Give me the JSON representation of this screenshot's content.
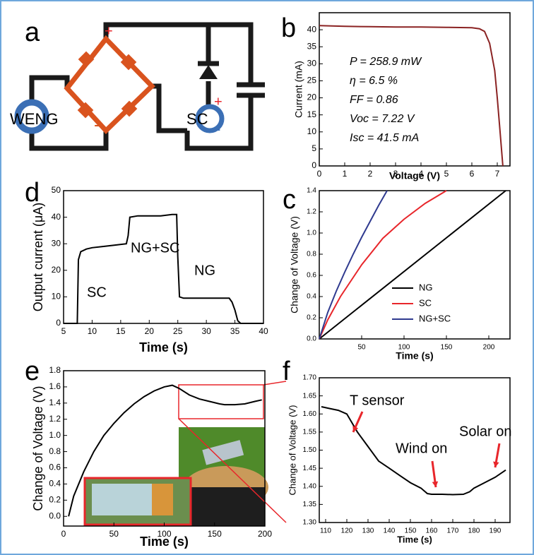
{
  "diagram": {
    "label": "a",
    "texts": [
      "+",
      "WENG",
      "-",
      "+",
      "SC",
      "-"
    ]
  },
  "chart_data": [
    {
      "type": "line",
      "label": "b",
      "x_label": "Voltage (V)",
      "y_label": "Current (mA)",
      "xlim": [
        0,
        7.5
      ],
      "ylim": [
        0,
        45
      ],
      "xticks": [
        0,
        1,
        2,
        3,
        4,
        5,
        6,
        7
      ],
      "yticks": [
        0,
        5,
        10,
        15,
        20,
        25,
        30,
        35,
        40
      ],
      "annotations": [
        "P = 258.9 mW",
        "η = 6.5 %",
        "FF = 0.86",
        "Voc = 7.22 V",
        "Isc = 41.5 mA"
      ],
      "series": [
        {
          "color": "#8b2323",
          "x": [
            0,
            1,
            2,
            3,
            4,
            5,
            6,
            6.3,
            6.5,
            6.7,
            6.9,
            7.0,
            7.1,
            7.22
          ],
          "values": [
            41.2,
            41.0,
            40.9,
            40.8,
            40.8,
            40.7,
            40.6,
            40.3,
            39.5,
            36,
            28,
            20,
            11,
            0
          ]
        }
      ]
    },
    {
      "type": "line",
      "label": "d",
      "x_label": "Time (s)",
      "y_label": "Output current (μA)",
      "xlim": [
        5,
        40
      ],
      "ylim": [
        0,
        50
      ],
      "xticks": [
        5,
        10,
        15,
        20,
        25,
        30,
        35,
        40
      ],
      "yticks": [
        0,
        10,
        20,
        30,
        40,
        50
      ],
      "annotations": [
        "SC",
        "NG+SC",
        "NG"
      ],
      "series": [
        {
          "color": "#000000",
          "x": [
            5,
            7.4,
            7.6,
            8,
            9,
            10,
            12,
            14,
            16,
            16.3,
            16.6,
            18,
            20,
            22,
            24,
            24.8,
            25,
            25.3,
            26,
            28,
            30,
            32,
            34,
            34.5,
            35,
            35.5,
            36,
            40
          ],
          "values": [
            0,
            0,
            24,
            27,
            28,
            28.5,
            29,
            29.5,
            30,
            33,
            40,
            40.5,
            40.5,
            40.5,
            41,
            41,
            25,
            10,
            9.5,
            9.5,
            9.5,
            9.5,
            9.5,
            8,
            5,
            1,
            0,
            0
          ]
        }
      ]
    },
    {
      "type": "line",
      "label": "c",
      "x_label": "Time (s)",
      "y_label": "Change of Voltage (V)",
      "xlim": [
        0,
        225
      ],
      "ylim": [
        0,
        1.4
      ],
      "xticks": [
        50,
        100,
        150,
        200
      ],
      "yticks": [
        {
          "value": 0,
          "label": "0.0"
        },
        0.2,
        0.4,
        0.6,
        0.8,
        {
          "value": 1,
          "label": "1.0"
        },
        1.2,
        1.4
      ],
      "legend": "lower right",
      "series": [
        {
          "name": "NG",
          "color": "#000000",
          "x": [
            0,
            220
          ],
          "values": [
            0,
            1.4
          ]
        },
        {
          "name": "SC",
          "color": "#e8262b",
          "x": [
            0,
            10,
            25,
            50,
            75,
            100,
            125,
            150
          ],
          "values": [
            0,
            0.18,
            0.4,
            0.7,
            0.95,
            1.13,
            1.28,
            1.4
          ]
        },
        {
          "name": "NG+SC",
          "color": "#2f3a8f",
          "x": [
            0,
            10,
            20,
            30,
            40,
            50,
            60,
            70,
            80
          ],
          "values": [
            0,
            0.25,
            0.45,
            0.63,
            0.8,
            0.96,
            1.11,
            1.26,
            1.4
          ]
        }
      ]
    },
    {
      "type": "line",
      "label": "e",
      "x_label": "Time (s)",
      "y_label": "Change of Voltage (V)",
      "xlim": [
        0,
        200
      ],
      "ylim": [
        -0.12,
        1.8
      ],
      "xticks": [
        0,
        50,
        100,
        150,
        200
      ],
      "yticks": [
        {
          "value": 0,
          "label": "0.0"
        },
        0.2,
        0.4,
        0.6,
        0.8,
        {
          "value": 1,
          "label": "1.0"
        },
        1.2,
        1.4,
        1.6,
        1.8
      ],
      "series": [
        {
          "color": "#000000",
          "x": [
            5,
            10,
            20,
            30,
            40,
            50,
            60,
            70,
            80,
            90,
            100,
            108,
            115,
            125,
            135,
            145,
            155,
            160,
            170,
            180,
            190,
            197
          ],
          "values": [
            0,
            0.25,
            0.55,
            0.8,
            1.0,
            1.15,
            1.28,
            1.39,
            1.48,
            1.55,
            1.6,
            1.62,
            1.58,
            1.5,
            1.45,
            1.42,
            1.39,
            1.38,
            1.38,
            1.39,
            1.42,
            1.44
          ]
        }
      ]
    },
    {
      "type": "line",
      "label": "f",
      "x_label": "Time (s)",
      "y_label": "Change of Voltage (V)",
      "xlim": [
        107,
        197
      ],
      "ylim": [
        1.3,
        1.7
      ],
      "xticks": [
        110,
        120,
        130,
        140,
        150,
        160,
        170,
        180,
        190
      ],
      "yticks": [
        {
          "value": 1.3,
          "label": "1.30"
        },
        1.35,
        {
          "value": 1.4,
          "label": "1.40"
        },
        1.45,
        {
          "value": 1.5,
          "label": "1.50"
        },
        1.55,
        {
          "value": 1.6,
          "label": "1.60"
        },
        1.65,
        {
          "value": 1.7,
          "label": "1.70"
        }
      ],
      "annotations": [
        "T sensor",
        "Wind on",
        "Solar on"
      ],
      "series": [
        {
          "color": "#000000",
          "x": [
            108,
            112,
            116,
            118,
            120,
            122,
            125,
            130,
            135,
            140,
            145,
            150,
            155,
            158,
            160,
            165,
            170,
            175,
            178,
            180,
            185,
            190,
            195
          ],
          "values": [
            1.62,
            1.615,
            1.61,
            1.605,
            1.6,
            1.58,
            1.55,
            1.51,
            1.47,
            1.45,
            1.43,
            1.41,
            1.395,
            1.38,
            1.378,
            1.378,
            1.377,
            1.378,
            1.385,
            1.395,
            1.41,
            1.425,
            1.445
          ]
        }
      ]
    }
  ]
}
